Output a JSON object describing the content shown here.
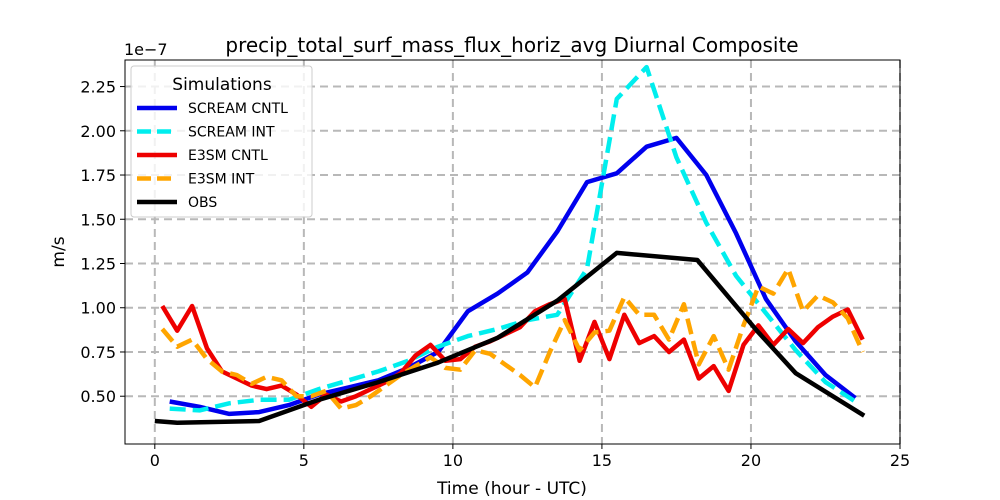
{
  "chart_data": {
    "type": "line",
    "title": "precip_total_surf_mass_flux_horiz_avg Diurnal Composite",
    "xlabel": "Time (hour - UTC)",
    "ylabel": "m/s",
    "y_offset_label": "1e−7",
    "xlim": [
      -1,
      25
    ],
    "ylim": [
      0.23,
      2.4
    ],
    "x_ticks": [
      0,
      5,
      10,
      15,
      20,
      25
    ],
    "x_tick_labels": [
      "0",
      "5",
      "10",
      "15",
      "20",
      "25"
    ],
    "y_ticks": [
      0.5,
      0.75,
      1.0,
      1.25,
      1.5,
      1.75,
      2.0,
      2.25
    ],
    "y_tick_labels": [
      "0.50",
      "0.75",
      "1.00",
      "1.25",
      "1.50",
      "1.75",
      "2.00",
      "2.25"
    ],
    "grid": true,
    "legend_title": "Simulations",
    "legend_position": "top-left",
    "series": [
      {
        "name": "SCREAM CNTL",
        "color": "#0000ee",
        "dash": "solid",
        "x": [
          0.5,
          1.5,
          2.5,
          3.5,
          4.5,
          5.5,
          6.5,
          7.5,
          8.5,
          9.5,
          10.5,
          11.5,
          12.5,
          13.5,
          14.5,
          15.5,
          16.5,
          17.5,
          18.5,
          19.5,
          20.5,
          21.5,
          22.5,
          23.5
        ],
        "values": [
          0.47,
          0.44,
          0.4,
          0.41,
          0.45,
          0.51,
          0.55,
          0.59,
          0.66,
          0.75,
          0.98,
          1.08,
          1.2,
          1.43,
          1.71,
          1.76,
          1.91,
          1.96,
          1.75,
          1.42,
          1.05,
          0.81,
          0.62,
          0.49
        ]
      },
      {
        "name": "SCREAM INT",
        "color": "#00eeee",
        "dash": "dashed",
        "x": [
          0.5,
          1.5,
          2.5,
          3.5,
          4.5,
          5.5,
          6.5,
          7.5,
          8.5,
          9.5,
          10.5,
          11.5,
          12.5,
          13.5,
          14.5,
          15.5,
          16.5,
          17.5,
          18.5,
          19.5,
          20.5,
          21.5,
          22.5,
          23.5
        ],
        "values": [
          0.43,
          0.42,
          0.46,
          0.48,
          0.48,
          0.54,
          0.59,
          0.64,
          0.7,
          0.78,
          0.84,
          0.88,
          0.93,
          0.96,
          1.22,
          2.18,
          2.36,
          1.85,
          1.48,
          1.18,
          0.97,
          0.76,
          0.58,
          0.47
        ]
      },
      {
        "name": "E3SM CNTL",
        "color": "#ee0000",
        "dash": "solid",
        "x": [
          0.25,
          0.75,
          1.25,
          1.75,
          2.25,
          2.75,
          3.25,
          3.75,
          4.25,
          4.75,
          5.25,
          5.75,
          6.25,
          6.75,
          7.25,
          7.75,
          8.25,
          8.75,
          9.25,
          9.75,
          10.25,
          10.75,
          11.25,
          11.75,
          12.25,
          12.75,
          13.25,
          13.75,
          14.25,
          14.75,
          15.25,
          15.75,
          16.25,
          16.75,
          17.25,
          17.75,
          18.25,
          18.75,
          19.25,
          19.75,
          20.25,
          20.75,
          21.25,
          21.75,
          22.25,
          22.75,
          23.25,
          23.75
        ],
        "values": [
          1.01,
          0.87,
          1.01,
          0.77,
          0.64,
          0.6,
          0.56,
          0.54,
          0.56,
          0.51,
          0.44,
          0.51,
          0.47,
          0.5,
          0.54,
          0.58,
          0.63,
          0.73,
          0.79,
          0.7,
          0.71,
          0.78,
          0.81,
          0.85,
          0.89,
          0.98,
          1.02,
          1.05,
          0.7,
          0.92,
          0.71,
          0.96,
          0.8,
          0.84,
          0.75,
          0.82,
          0.6,
          0.67,
          0.53,
          0.79,
          0.9,
          0.79,
          0.88,
          0.8,
          0.89,
          0.95,
          0.99,
          0.82
        ]
      },
      {
        "name": "E3SM INT",
        "color": "#ffa500",
        "dash": "dashed",
        "x": [
          0.25,
          0.75,
          1.25,
          1.75,
          2.25,
          2.75,
          3.25,
          3.75,
          4.25,
          4.75,
          5.25,
          5.75,
          6.25,
          6.75,
          7.25,
          7.75,
          8.25,
          8.75,
          9.25,
          9.75,
          10.25,
          10.75,
          11.25,
          11.75,
          12.25,
          12.75,
          13.25,
          13.75,
          14.25,
          14.75,
          15.25,
          15.75,
          16.25,
          16.75,
          17.25,
          17.75,
          18.25,
          18.75,
          19.25,
          19.75,
          20.25,
          20.75,
          21.25,
          21.75,
          22.25,
          22.75,
          23.25,
          23.75
        ],
        "values": [
          0.88,
          0.78,
          0.82,
          0.71,
          0.64,
          0.62,
          0.57,
          0.61,
          0.59,
          0.5,
          0.5,
          0.53,
          0.43,
          0.45,
          0.5,
          0.56,
          0.62,
          0.67,
          0.72,
          0.66,
          0.65,
          0.76,
          0.74,
          0.68,
          0.62,
          0.55,
          0.75,
          0.93,
          0.76,
          0.86,
          0.87,
          1.06,
          0.96,
          0.96,
          0.82,
          1.02,
          0.68,
          0.84,
          0.65,
          0.9,
          1.12,
          1.08,
          1.22,
          0.98,
          1.07,
          1.03,
          0.94,
          0.75
        ]
      },
      {
        "name": "OBS",
        "color": "#000000",
        "dash": "solid",
        "x": [
          0,
          0.75,
          3.5,
          5.5,
          7.5,
          9.5,
          11.5,
          13.5,
          15.5,
          18.2,
          20.2,
          21.5,
          23.8
        ],
        "values": [
          0.36,
          0.35,
          0.36,
          0.48,
          0.58,
          0.69,
          0.83,
          1.04,
          1.31,
          1.27,
          0.87,
          0.63,
          0.39
        ]
      }
    ]
  }
}
